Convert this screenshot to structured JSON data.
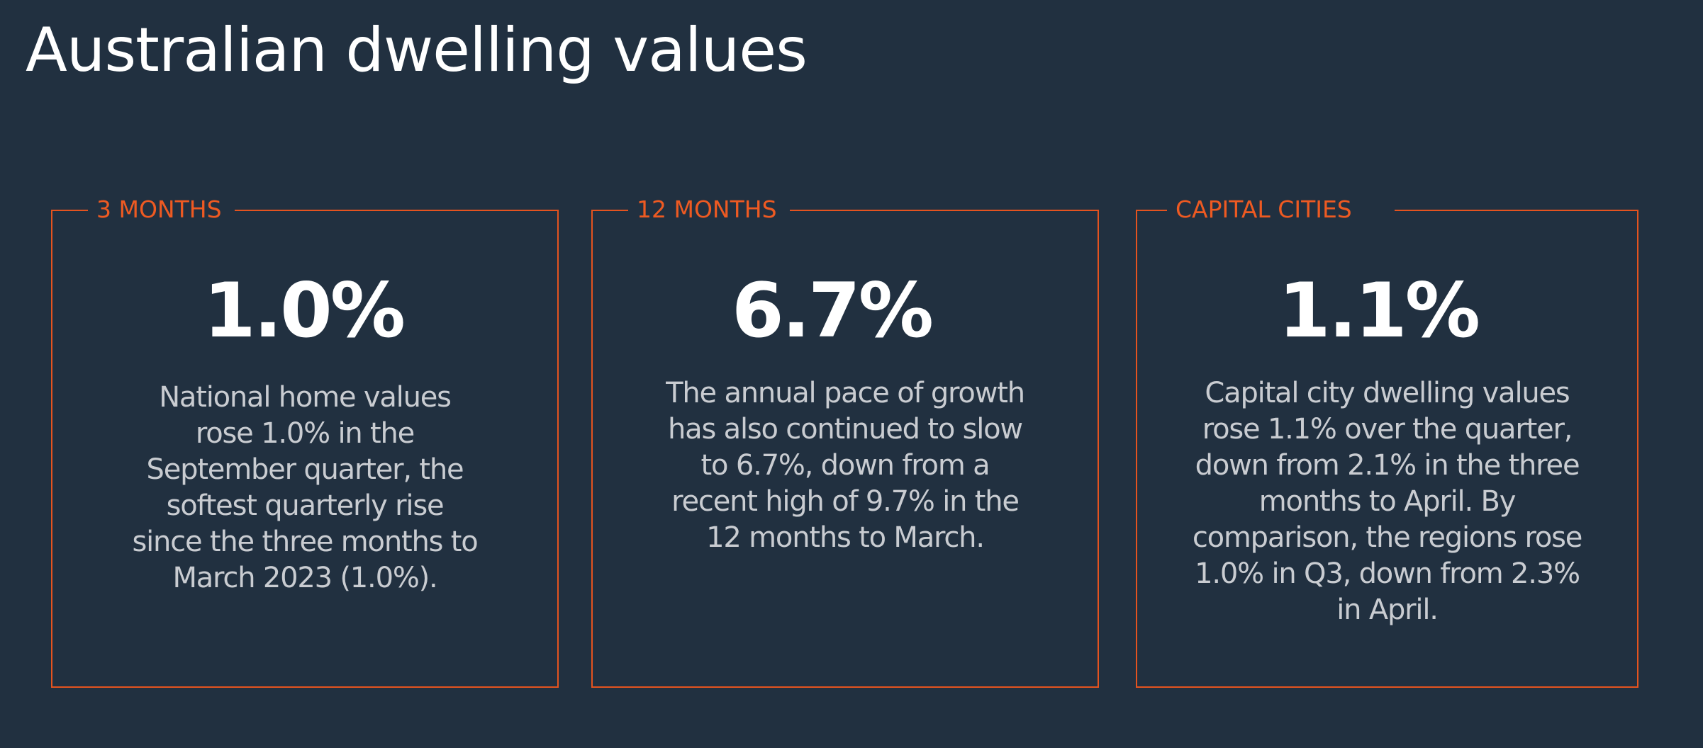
{
  "title": "Australian dwelling values",
  "colors": {
    "background": "#213040",
    "accent": "#e4531f",
    "value_text": "#ffffff",
    "body_text": "#c9ccd1"
  },
  "cards": [
    {
      "label": "3 MONTHS",
      "value": "1.0%",
      "description": "National home values rose 1.0% in the September quarter, the softest quarterly rise since the three months to March 2023 (1.0%)."
    },
    {
      "label": "12 MONTHS",
      "value": "6.7%",
      "description": "The annual pace of growth has also continued to slow to 6.7%, down from a recent high of 9.7% in the 12 months to March."
    },
    {
      "label": "CAPITAL CITIES",
      "value": "1.1%",
      "description": "Capital city dwelling values rose 1.1% over the quarter, down from 2.1% in the three months to April. By comparison, the regions rose 1.0% in Q3, down from 2.3% in April."
    }
  ]
}
